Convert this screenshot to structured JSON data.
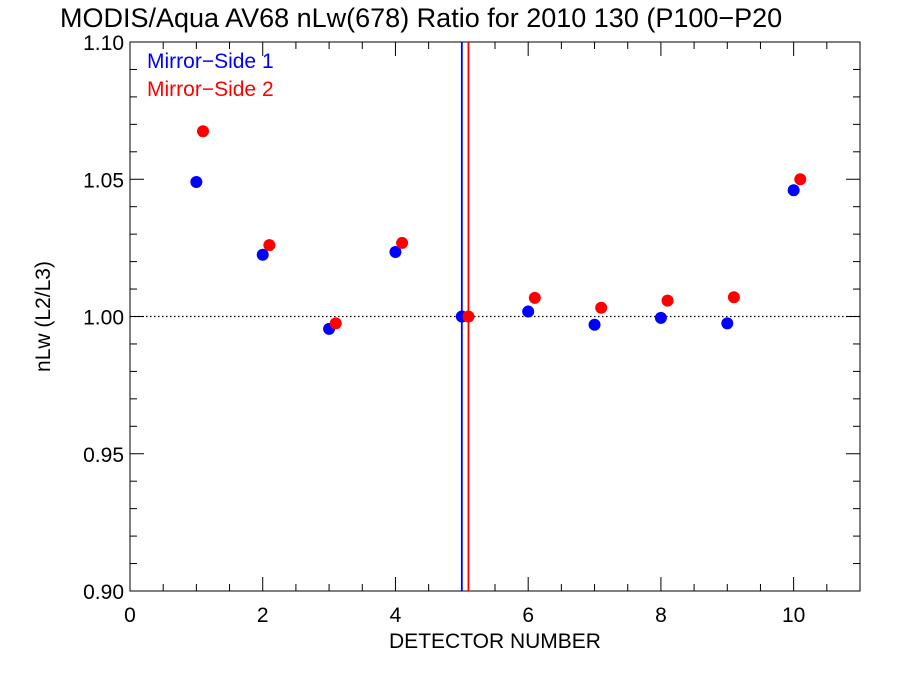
{
  "chart_data": {
    "type": "scatter",
    "title": "MODIS/Aqua AV68 nLw(678) Ratio for 2010 130 (P100−P20",
    "xlabel": "DETECTOR NUMBER",
    "ylabel": "nLw (L2/L3)",
    "xlim": [
      0,
      11
    ],
    "ylim": [
      0.9,
      1.1
    ],
    "x_ticks": [
      0,
      2,
      4,
      6,
      8,
      10
    ],
    "x_tick_labels": [
      "0",
      "2",
      "4",
      "6",
      "8",
      "10"
    ],
    "y_ticks": [
      0.9,
      0.95,
      1.0,
      1.05,
      1.1
    ],
    "y_tick_labels": [
      "0.90",
      "0.95",
      "1.00",
      "1.05",
      "1.10"
    ],
    "reference_line": {
      "y": 1.0,
      "style": "dotted"
    },
    "vertical_lines": [
      {
        "x": 5.0,
        "color": "#0000ff"
      },
      {
        "x": 5.1,
        "color": "#ff0000"
      }
    ],
    "legend_position": "top-left",
    "grid": false,
    "series": [
      {
        "name": "Mirror−Side 1",
        "color": "#0000ff",
        "x": [
          1,
          2,
          3,
          4,
          5,
          6,
          7,
          8,
          9,
          10
        ],
        "y": [
          1.049,
          1.0225,
          0.9955,
          1.0235,
          1.0,
          1.0018,
          0.997,
          0.9995,
          0.9975,
          1.046
        ]
      },
      {
        "name": "Mirror−Side 2",
        "color": "#ff0000",
        "x": [
          1.1,
          2.1,
          3.1,
          4.1,
          5.1,
          6.1,
          7.1,
          8.1,
          9.1,
          10.1
        ],
        "y": [
          1.0675,
          1.026,
          0.9975,
          1.0268,
          1.0,
          1.0068,
          1.0032,
          1.0058,
          1.007,
          1.05
        ]
      }
    ]
  }
}
